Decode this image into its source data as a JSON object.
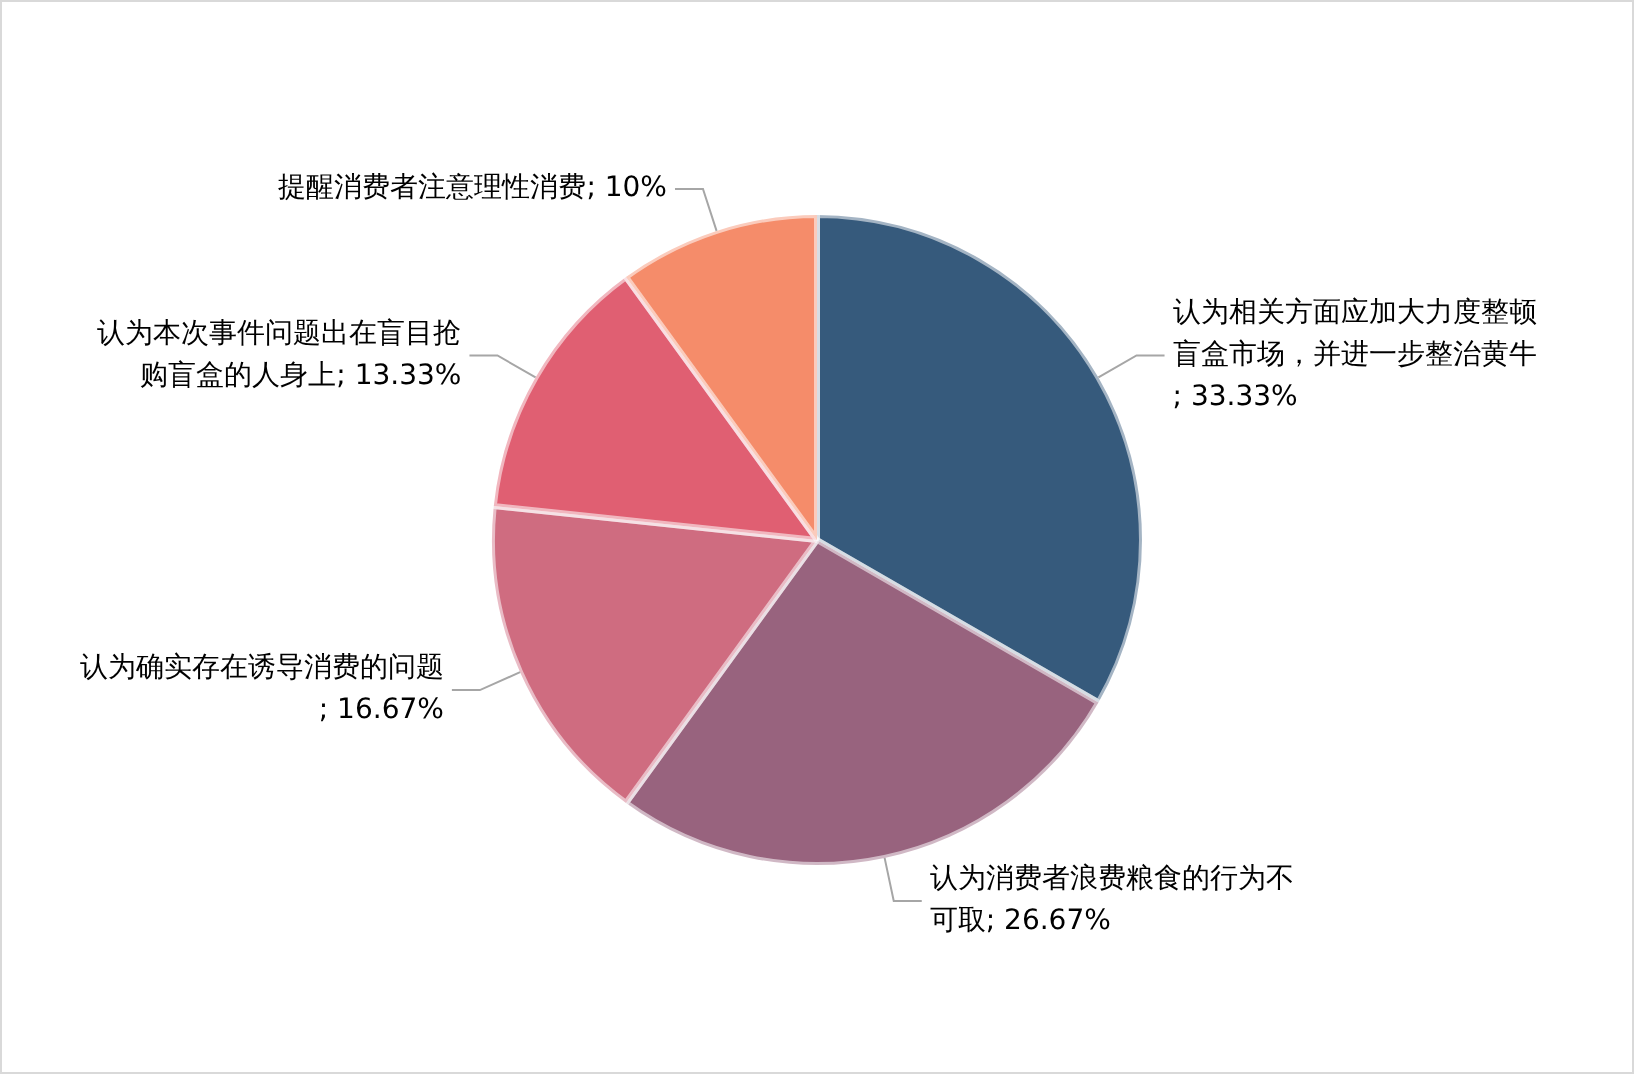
{
  "chart_data": {
    "type": "pie",
    "categories": [
      "认为相关方面应加大力度整顿盲盒市场，并进一步整治黄牛",
      "认为消费者浪费粮食的行为不可取",
      "认为确实存在诱导消费的问题",
      "认为本次事件问题出在盲目抢购盲盒的人身上",
      "提醒消费者注意理性消费"
    ],
    "values": [
      33.33,
      26.67,
      16.67,
      13.33,
      10
    ],
    "value_labels": [
      "; 33.33%",
      "; 26.67%",
      "; 16.67%",
      "; 13.33%",
      "; 10%"
    ],
    "colors": [
      "#365a7c",
      "#98637e",
      "#cf6c80",
      "#e05f72",
      "#f58c6a"
    ],
    "legend": false
  }
}
